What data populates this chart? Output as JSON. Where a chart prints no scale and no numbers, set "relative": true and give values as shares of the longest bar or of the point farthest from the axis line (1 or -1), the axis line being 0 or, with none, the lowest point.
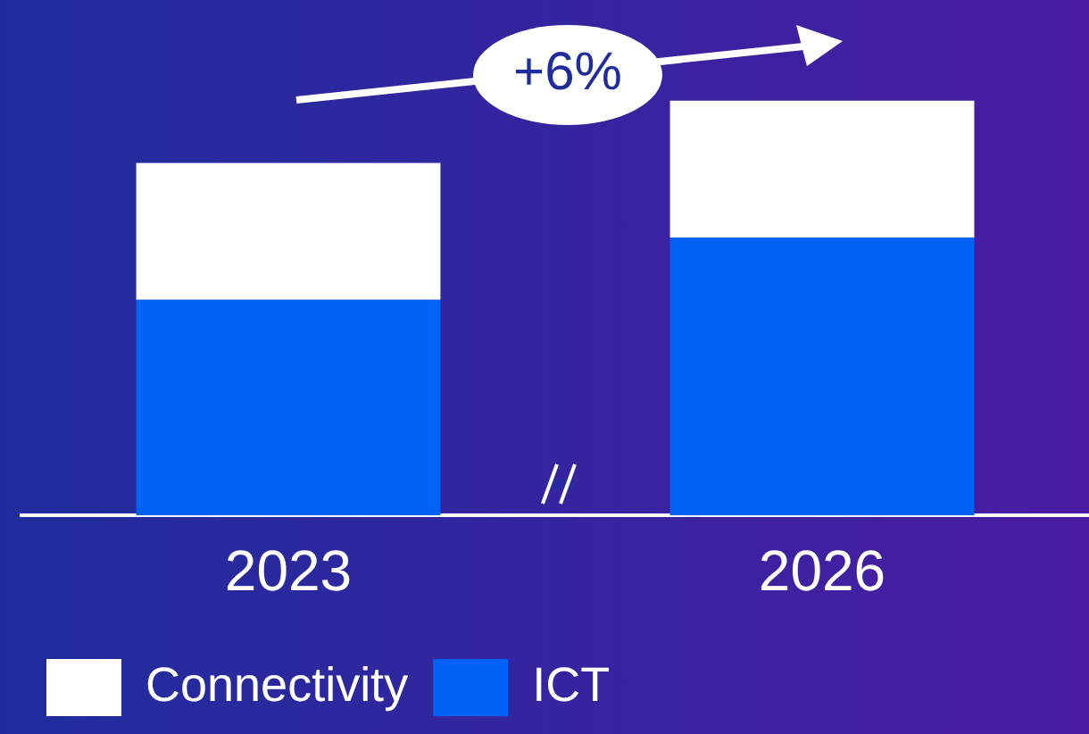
{
  "chart_data": {
    "type": "bar",
    "stacked": true,
    "relative": true,
    "legend": "bottom left",
    "categories": [
      "2023",
      "2026"
    ],
    "series": [
      {
        "name": "ICT",
        "color": "#0063f5",
        "values": [
          0.52,
          0.67
        ]
      },
      {
        "name": "Connectivity",
        "color": "#ffffff",
        "values": [
          0.33,
          0.33
        ]
      }
    ],
    "annotations": [
      "+6%"
    ]
  }
}
